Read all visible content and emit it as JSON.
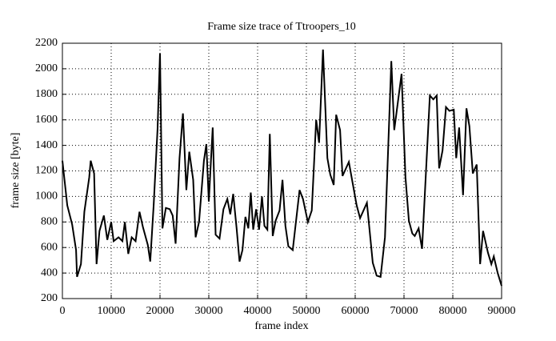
{
  "chart_data": {
    "type": "line",
    "title": "Frame size trace of Ttroopers_10",
    "x_label": "frame index",
    "y_label": "frame size [byte]",
    "x": [
      0,
      1000,
      2000,
      2800,
      3000,
      3800,
      4500,
      5500,
      5800,
      6500,
      7000,
      7600,
      8500,
      9200,
      10000,
      10500,
      11500,
      12300,
      12800,
      13500,
      14200,
      15000,
      15800,
      16500,
      17500,
      18000,
      18700,
      19500,
      20000,
      20500,
      21200,
      22000,
      22600,
      23200,
      24000,
      24700,
      25400,
      26000,
      26800,
      27300,
      28000,
      29000,
      29500,
      30000,
      30800,
      31400,
      32200,
      33000,
      33800,
      34400,
      35000,
      35700,
      36300,
      36900,
      37500,
      38100,
      38600,
      39100,
      39700,
      40300,
      40900,
      41400,
      42000,
      42500,
      43100,
      43700,
      44500,
      45100,
      45700,
      46300,
      47200,
      48600,
      49300,
      50300,
      51100,
      52000,
      52600,
      53400,
      54300,
      54900,
      55600,
      56100,
      56900,
      57400,
      58700,
      60300,
      61000,
      62400,
      63600,
      64400,
      65200,
      66100,
      67400,
      68000,
      69500,
      70300,
      71000,
      71700,
      72200,
      73000,
      73700,
      75300,
      76000,
      76700,
      77200,
      77900,
      78600,
      79300,
      80200,
      80700,
      81300,
      82100,
      82800,
      83400,
      84100,
      84900,
      85600,
      86200,
      87200,
      87900,
      88400,
      89200,
      90000
    ],
    "series": [
      {
        "name": "frame size",
        "color": "#000000",
        "values": [
          1280,
          930,
          780,
          580,
          370,
          470,
          880,
          1150,
          1280,
          1180,
          470,
          730,
          850,
          660,
          800,
          650,
          680,
          650,
          800,
          550,
          680,
          650,
          880,
          760,
          620,
          490,
          930,
          1530,
          2120,
          750,
          910,
          900,
          850,
          630,
          1300,
          1650,
          1050,
          1350,
          1130,
          680,
          800,
          1280,
          1410,
          960,
          1540,
          700,
          670,
          900,
          980,
          860,
          1020,
          750,
          490,
          580,
          840,
          750,
          1030,
          740,
          900,
          740,
          1000,
          770,
          740,
          1490,
          690,
          810,
          890,
          1130,
          770,
          610,
          580,
          1050,
          980,
          800,
          890,
          1600,
          1420,
          2150,
          1300,
          1170,
          1090,
          1640,
          1520,
          1160,
          1270,
          930,
          830,
          950,
          480,
          380,
          370,
          680,
          2060,
          1520,
          1960,
          1150,
          810,
          710,
          690,
          750,
          590,
          1790,
          1760,
          1790,
          1220,
          1360,
          1700,
          1670,
          1680,
          1300,
          1540,
          1010,
          1690,
          1550,
          1180,
          1250,
          470,
          730,
          560,
          470,
          530,
          400,
          300
        ]
      }
    ],
    "xlim": [
      0,
      90000
    ],
    "xticks": [
      0,
      10000,
      20000,
      30000,
      40000,
      50000,
      60000,
      70000,
      80000,
      90000
    ],
    "ylim": [
      200,
      2200
    ],
    "yticks": [
      200,
      400,
      600,
      800,
      1000,
      1200,
      1400,
      1600,
      1800,
      2000,
      2200
    ],
    "grid": true
  }
}
